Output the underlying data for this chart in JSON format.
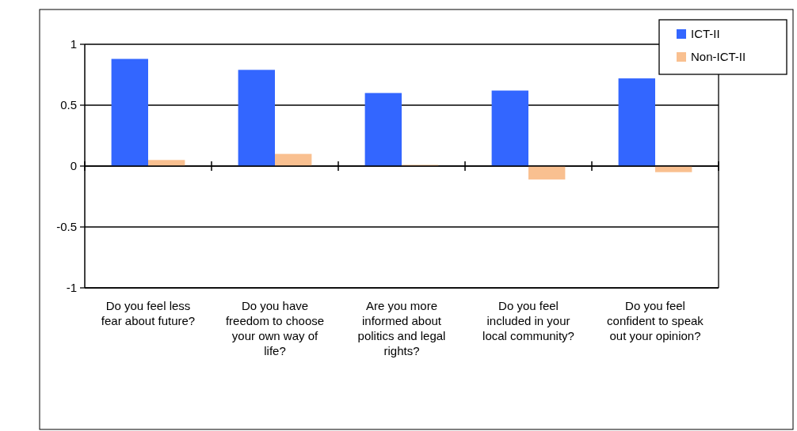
{
  "chart_data": {
    "type": "bar",
    "categories": [
      "Do you feel less fear about future?",
      "Do you have freedom to choose your own way of life?",
      "Are you more informed about politics and legal rights?",
      "Do you feel included in your local community?",
      "Do you feel confident to speak out your opinion?"
    ],
    "series": [
      {
        "name": "ICT-II",
        "color": "#3366ff",
        "values": [
          0.88,
          0.79,
          0.6,
          0.62,
          0.72
        ]
      },
      {
        "name": "Non-ICT-II",
        "color": "#f9c090",
        "values": [
          0.05,
          0.1,
          0.01,
          -0.11,
          -0.05
        ]
      }
    ],
    "ylim": [
      -1,
      1
    ],
    "yticks": [
      -1,
      -0.5,
      0,
      0.5,
      1
    ],
    "grid": "y",
    "legend": "top right"
  }
}
